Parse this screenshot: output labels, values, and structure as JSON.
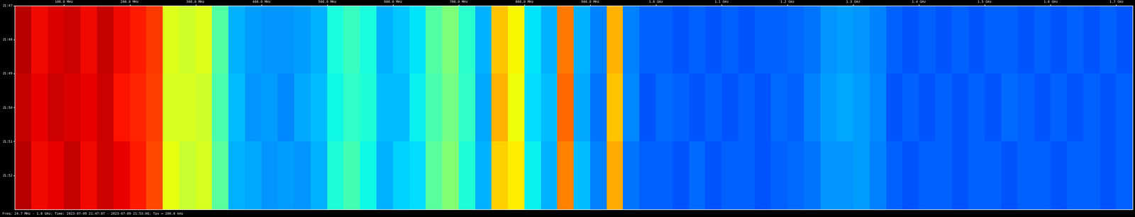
{
  "chart_data": {
    "type": "heatmap",
    "footer": "Freq: 24.7 MHz - 1.8 GHz; Time: 2023-07-09 21:47:07 - 2023-07-09 21:53:00; Tps = 200.0 kHz",
    "color": "jet",
    "color_range": [
      0,
      1
    ],
    "x_edges": [
      25,
      50,
      75,
      100,
      125,
      150,
      175,
      200,
      225,
      250,
      275,
      300,
      325,
      350,
      375,
      400,
      425,
      450,
      475,
      500,
      525,
      550,
      575,
      600,
      625,
      650,
      675,
      700,
      725,
      750,
      775,
      800,
      825,
      850,
      875,
      900,
      925,
      950,
      975,
      1000,
      1025,
      1050,
      1075,
      1100,
      1125,
      1150,
      1175,
      1200,
      1225,
      1250,
      1275,
      1300,
      1325,
      1350,
      1375,
      1400,
      1425,
      1450,
      1475,
      1500,
      1525,
      1550,
      1575,
      1600,
      1625,
      1650,
      1675,
      1700,
      1725
    ],
    "y_edges": [
      47,
      49,
      51,
      53
    ],
    "cells": [
      [
        0.95,
        0.9,
        0.92,
        0.93,
        0.9,
        0.94,
        0.9,
        0.88,
        0.85,
        0.62,
        0.6,
        0.62,
        0.45,
        0.3,
        0.28,
        0.27,
        0.27,
        0.28,
        0.3,
        0.38,
        0.42,
        0.38,
        0.3,
        0.32,
        0.35,
        0.45,
        0.5,
        0.4,
        0.3,
        0.7,
        0.65,
        0.35,
        0.3,
        0.78,
        0.3,
        0.25,
        0.72,
        0.25,
        0.22,
        0.22,
        0.21,
        0.22,
        0.21,
        0.22,
        0.21,
        0.22,
        0.22,
        0.23,
        0.24,
        0.27,
        0.28,
        0.27,
        0.25,
        0.22,
        0.21,
        0.22,
        0.21,
        0.22,
        0.21,
        0.22,
        0.22,
        0.21,
        0.22,
        0.21,
        0.22,
        0.21,
        0.22,
        0.21
      ],
      [
        0.94,
        0.91,
        0.93,
        0.92,
        0.91,
        0.93,
        0.89,
        0.87,
        0.84,
        0.61,
        0.61,
        0.6,
        0.44,
        0.31,
        0.27,
        0.28,
        0.26,
        0.29,
        0.31,
        0.37,
        0.41,
        0.39,
        0.31,
        0.31,
        0.36,
        0.44,
        0.49,
        0.41,
        0.29,
        0.72,
        0.64,
        0.34,
        0.31,
        0.8,
        0.29,
        0.24,
        0.7,
        0.26,
        0.21,
        0.23,
        0.22,
        0.21,
        0.22,
        0.21,
        0.22,
        0.21,
        0.23,
        0.22,
        0.25,
        0.28,
        0.29,
        0.28,
        0.26,
        0.21,
        0.22,
        0.21,
        0.22,
        0.21,
        0.22,
        0.21,
        0.23,
        0.22,
        0.21,
        0.22,
        0.21,
        0.22,
        0.21,
        0.22
      ],
      [
        0.95,
        0.9,
        0.91,
        0.94,
        0.9,
        0.93,
        0.91,
        0.88,
        0.83,
        0.63,
        0.59,
        0.61,
        0.46,
        0.3,
        0.29,
        0.27,
        0.28,
        0.27,
        0.3,
        0.39,
        0.43,
        0.37,
        0.3,
        0.33,
        0.34,
        0.46,
        0.51,
        0.39,
        0.3,
        0.69,
        0.66,
        0.36,
        0.3,
        0.77,
        0.31,
        0.25,
        0.73,
        0.24,
        0.22,
        0.22,
        0.21,
        0.23,
        0.21,
        0.22,
        0.22,
        0.21,
        0.22,
        0.23,
        0.24,
        0.27,
        0.27,
        0.28,
        0.25,
        0.22,
        0.21,
        0.22,
        0.22,
        0.21,
        0.22,
        0.22,
        0.21,
        0.22,
        0.22,
        0.21,
        0.22,
        0.22,
        0.21,
        0.22
      ]
    ],
    "xlim": [
      25,
      1725
    ],
    "ylim": [
      53,
      47
    ],
    "xticks": [
      {
        "value": 100,
        "label": "100.0 MHz"
      },
      {
        "value": 200,
        "label": "200.0 MHz"
      },
      {
        "value": 300,
        "label": "300.0 MHz"
      },
      {
        "value": 400,
        "label": "400.0 MHz"
      },
      {
        "value": 500,
        "label": "500.0 MHz"
      },
      {
        "value": 600,
        "label": "600.0 MHz"
      },
      {
        "value": 700,
        "label": "700.0 MHz"
      },
      {
        "value": 800,
        "label": "800.0 MHz"
      },
      {
        "value": 900,
        "label": "900.0 MHz"
      },
      {
        "value": 1000,
        "label": "1.0 GHz"
      },
      {
        "value": 1100,
        "label": "1.1 GHz"
      },
      {
        "value": 1200,
        "label": "1.2 GHz"
      },
      {
        "value": 1300,
        "label": "1.3 GHz"
      },
      {
        "value": 1400,
        "label": "1.4 GHz"
      },
      {
        "value": 1500,
        "label": "1.5 GHz"
      },
      {
        "value": 1600,
        "label": "1.6 GHz"
      },
      {
        "value": 1700,
        "label": "1.7 GHz"
      }
    ],
    "yticks": [
      {
        "value": 47,
        "label": "21:47"
      },
      {
        "value": 48,
        "label": "21:48"
      },
      {
        "value": 49,
        "label": "21:49"
      },
      {
        "value": 50,
        "label": "21:50"
      },
      {
        "value": 51,
        "label": "21:51"
      },
      {
        "value": 52,
        "label": "21:52"
      }
    ]
  }
}
